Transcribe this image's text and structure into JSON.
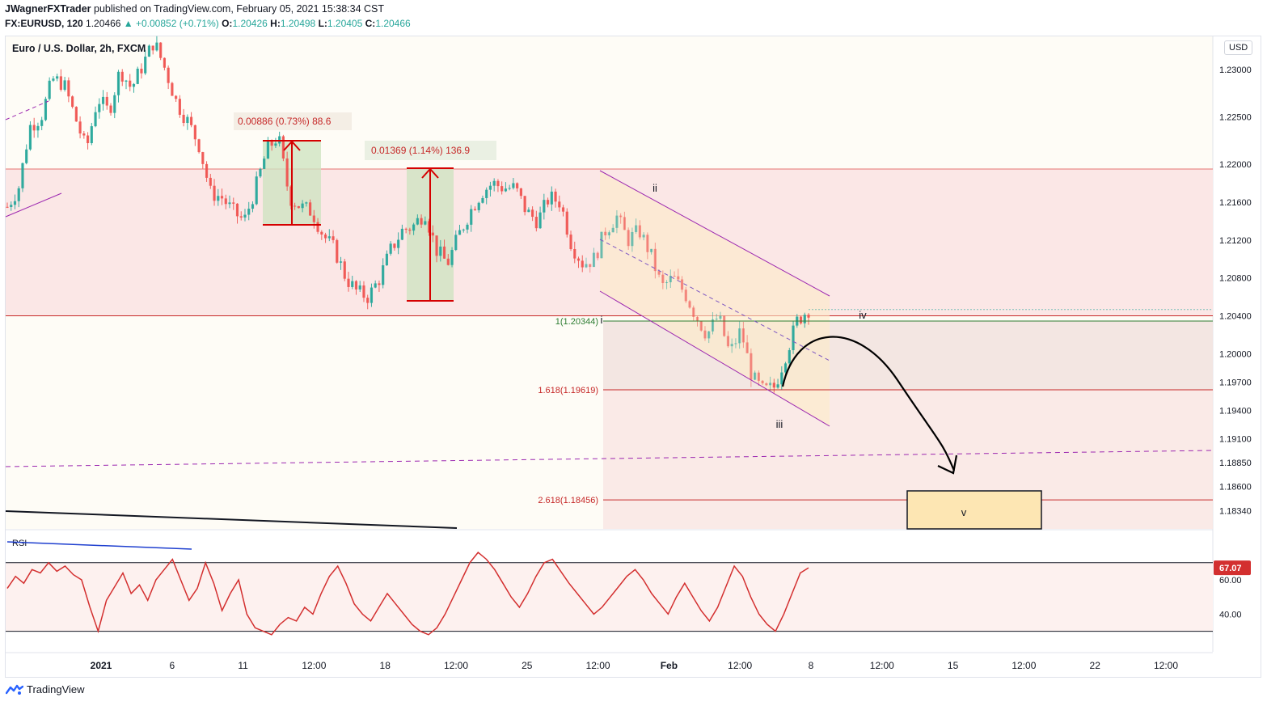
{
  "header": {
    "publisher": "JWagnerFXTrader",
    "published_text": "published on TradingView.com, February 05, 2021 15:38:34 CST",
    "symbol": "FX:EURUSD, 120",
    "last": "1.20466",
    "change": "▲ +0.00852 (+0.71%)",
    "o_label": "O:",
    "o_value": "1.20426",
    "h_label": "H:",
    "h_value": "1.20498",
    "l_label": "L:",
    "l_value": "1.20405",
    "c_label": "C:",
    "c_value": "1.20466"
  },
  "chart_title": "Euro / U.S. Dollar, 2h, FXCM",
  "currency_badge": "USD",
  "branding": "TradingView",
  "colors": {
    "up_candle": "#26a69a",
    "down_candle": "#ef5350",
    "rsi_line": "#d32f2f",
    "channel": "#9c27b0",
    "resistance_zone": "#fbe7e6",
    "fib_line": "#c62828"
  },
  "chart_data": [
    {
      "type": "candlestick",
      "title": "Euro / U.S. Dollar, 2h, FXCM",
      "ylabel": "USD",
      "ylim": [
        1.1815,
        1.2335
      ],
      "y_ticks": [
        1.23,
        1.225,
        1.22,
        1.216,
        1.212,
        1.208,
        1.204,
        1.2,
        1.197,
        1.194,
        1.191,
        1.1885,
        1.186,
        1.1834
      ],
      "y_tick_labels": [
        "1.23000",
        "1.22500",
        "1.22000",
        "1.21600",
        "1.21200",
        "1.20800",
        "1.20400",
        "1.20000",
        "1.19700",
        "1.19400",
        "1.19100",
        "1.18850",
        "1.18600",
        "1.18340"
      ],
      "x_tick_labels": [
        "2021",
        "6",
        "11",
        "12:00",
        "18",
        "12:00",
        "25",
        "12:00",
        "Feb",
        "12:00",
        "8",
        "12:00",
        "15",
        "12:00",
        "22",
        "12:00"
      ],
      "close_path": [
        1.2155,
        1.2175,
        1.224,
        1.225,
        1.229,
        1.2285,
        1.225,
        1.2215,
        1.227,
        1.2255,
        1.23,
        1.228,
        1.2305,
        1.233,
        1.23,
        1.2265,
        1.2245,
        1.222,
        1.217,
        1.2165,
        1.215,
        1.214,
        1.2175,
        1.2215,
        1.223,
        1.2165,
        1.2155,
        1.215,
        1.2125,
        1.211,
        1.208,
        1.2065,
        1.206,
        1.208,
        1.211,
        1.213,
        1.2135,
        1.215,
        1.211,
        1.2095,
        1.2125,
        1.215,
        1.217,
        1.218,
        1.2175,
        1.2175,
        1.215,
        1.214,
        1.2165,
        1.216,
        1.2115,
        1.2095,
        1.21,
        1.213,
        1.2145,
        1.212,
        1.213,
        1.2105,
        1.207,
        1.208,
        1.2065,
        1.204,
        1.202,
        1.204,
        1.2,
        1.2025,
        1.1975,
        1.196,
        1.1965,
        1.2,
        1.2035,
        1.2047
      ],
      "current_price": 1.20466,
      "zones": [
        {
          "name": "resistance",
          "from": 1.204,
          "to": 1.2195
        },
        {
          "name": "fib-extension",
          "from": 1.1815,
          "to": 1.2034
        }
      ],
      "fib_levels": [
        {
          "label": "1(1.20344)",
          "value": 1.20344
        },
        {
          "label": "1.618(1.19619)",
          "value": 1.19619
        },
        {
          "label": "2.618(1.18456)",
          "value": 1.18456
        }
      ],
      "measurements": [
        {
          "label": "0.00886 (0.73%) 88.6"
        },
        {
          "label": "0.01369 (1.14%) 136.9"
        }
      ],
      "wave_labels": [
        "i",
        "ii",
        "iii",
        "iv",
        "v"
      ]
    },
    {
      "type": "line",
      "name": "RSI",
      "ylabel": "RSI",
      "ylim": [
        18,
        85
      ],
      "y_ticks": [
        60,
        40
      ],
      "y_tick_labels": [
        "60.00",
        "40.00"
      ],
      "bands": [
        70,
        30
      ],
      "current_value": "67.07",
      "values": [
        55,
        62,
        58,
        66,
        64,
        70,
        65,
        68,
        63,
        60,
        44,
        30,
        48,
        56,
        64,
        52,
        57,
        48,
        60,
        66,
        72,
        60,
        48,
        55,
        70,
        58,
        42,
        52,
        60,
        40,
        32,
        30,
        28,
        34,
        38,
        36,
        44,
        40,
        52,
        62,
        68,
        58,
        46,
        40,
        36,
        44,
        52,
        46,
        40,
        34,
        30,
        28,
        32,
        40,
        50,
        60,
        70,
        76,
        72,
        66,
        58,
        50,
        44,
        52,
        62,
        70,
        72,
        65,
        58,
        52,
        46,
        40,
        44,
        50,
        56,
        62,
        66,
        60,
        52,
        46,
        40,
        50,
        58,
        50,
        42,
        36,
        44,
        56,
        68,
        62,
        50,
        40,
        34,
        30,
        40,
        52,
        64,
        67
      ]
    }
  ]
}
